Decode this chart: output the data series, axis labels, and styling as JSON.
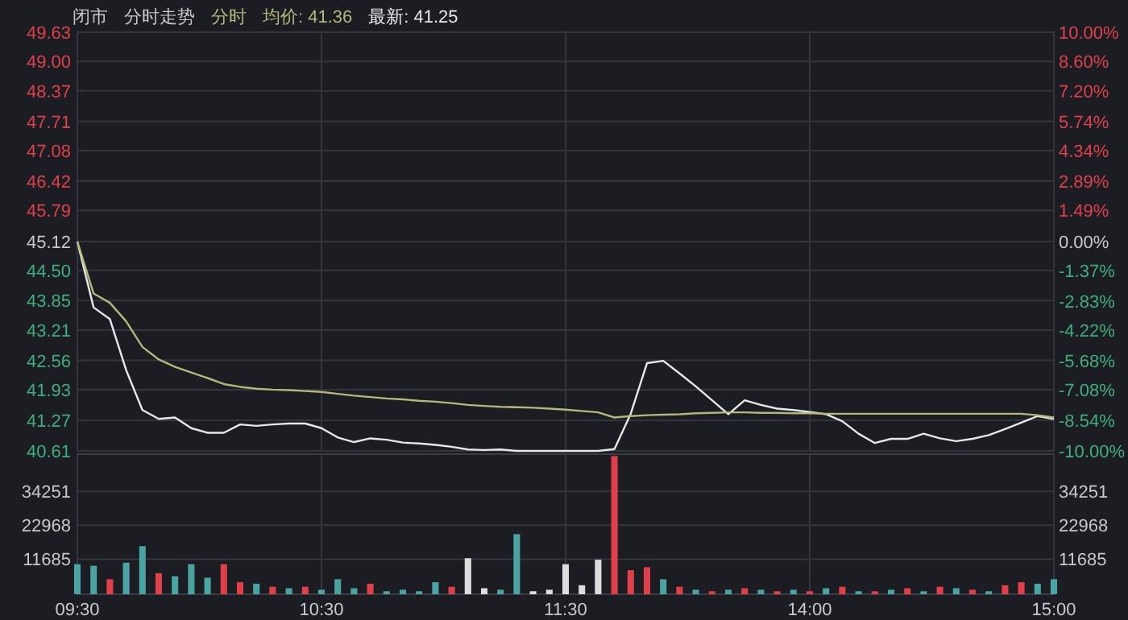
{
  "chart_data": [
    {
      "type": "line",
      "annotations": [
        "闭市",
        "分时走势",
        "分时",
        "均价: 41.36",
        "最新: 41.25"
      ],
      "categories": [
        null,
        null,
        null,
        null,
        null,
        null,
        null,
        null,
        null,
        null,
        null,
        null,
        null,
        null,
        null,
        null,
        null,
        null,
        null,
        null,
        null,
        null,
        null,
        null,
        null,
        null,
        null,
        null,
        null,
        null,
        null,
        null,
        null,
        null,
        null,
        null,
        null,
        null,
        null,
        null,
        null,
        null,
        null,
        null,
        null,
        null,
        null,
        null,
        null,
        null,
        null,
        null,
        null,
        null,
        null,
        null,
        null,
        null,
        null,
        null,
        null
      ],
      "ylim": [
        40.61,
        49.63
      ],
      "yticks": [
        40.61,
        41.27,
        41.93,
        42.56,
        43.21,
        43.85,
        {
          "value": 44.5,
          "label": "44.50"
        },
        45.12,
        45.79,
        46.42,
        47.08,
        47.71,
        48.37,
        {
          "value": 49,
          "label": "49.00"
        },
        49.63
      ],
      "y2lim": [
        -10,
        10
      ],
      "y2ticks": [
        {
          "value": -10,
          "label": "-10.00%"
        },
        {
          "value": -8.54,
          "label": "-8.54%"
        },
        {
          "value": -7.08,
          "label": "-7.08%"
        },
        {
          "value": -5.68,
          "label": "-5.68%"
        },
        {
          "value": -4.22,
          "label": "-4.22%"
        },
        {
          "value": -2.83,
          "label": "-2.83%"
        },
        {
          "value": -1.37,
          "label": "-1.37%"
        },
        {
          "value": 0,
          "label": "0.00%"
        },
        {
          "value": 1.49,
          "label": "1.49%"
        },
        {
          "value": 2.89,
          "label": "2.89%"
        },
        {
          "value": 4.34,
          "label": "4.34%"
        },
        {
          "value": 5.74,
          "label": "5.74%"
        },
        {
          "value": 7.2,
          "label": "7.20%"
        },
        {
          "value": 8.6,
          "label": "8.60%"
        },
        {
          "value": 10,
          "label": "10.00%"
        }
      ],
      "grid": true,
      "tick_labels": "y",
      "series": [
        {
          "color": "#e8e8e8",
          "values": [
            45.12,
            43.7,
            43.45,
            42.35,
            41.49,
            41.3,
            41.33,
            41.1,
            41.0,
            41.0,
            41.18,
            41.15,
            41.18,
            41.2,
            41.2,
            41.1,
            40.9,
            40.8,
            40.88,
            40.85,
            40.79,
            40.77,
            40.74,
            40.7,
            40.64,
            40.63,
            40.64,
            40.61,
            40.61,
            40.61,
            40.61,
            40.61,
            40.61,
            40.65,
            41.41,
            42.5,
            42.55,
            42.28,
            42.0,
            41.7,
            41.4,
            41.7,
            41.6,
            41.52,
            41.49,
            41.45,
            41.4,
            41.25,
            40.98,
            40.78,
            40.87,
            40.87,
            40.98,
            40.88,
            40.82,
            40.87,
            40.95,
            41.08,
            41.22,
            41.36,
            41.3
          ]
        },
        {
          "color": "#b5b77a",
          "values": [
            45.12,
            44.0,
            43.8,
            43.4,
            42.85,
            42.58,
            42.42,
            42.3,
            42.18,
            42.05,
            41.99,
            41.95,
            41.93,
            41.92,
            41.9,
            41.88,
            41.84,
            41.8,
            41.77,
            41.74,
            41.72,
            41.69,
            41.67,
            41.64,
            41.6,
            41.58,
            41.56,
            41.55,
            41.54,
            41.52,
            41.5,
            41.47,
            41.44,
            41.33,
            41.36,
            41.38,
            41.39,
            41.4,
            41.42,
            41.43,
            41.44,
            41.44,
            41.43,
            41.43,
            41.42,
            41.42,
            41.41,
            41.41,
            41.41,
            41.41,
            41.41,
            41.41,
            41.41,
            41.41,
            41.41,
            41.41,
            41.41,
            41.41,
            41.41,
            41.38,
            41.33
          ]
        }
      ]
    },
    {
      "type": "bar",
      "categories": [
        "09:30",
        null,
        null,
        null,
        null,
        null,
        null,
        null,
        null,
        null,
        null,
        null,
        null,
        null,
        null,
        "10:30",
        null,
        null,
        null,
        null,
        null,
        null,
        null,
        null,
        null,
        null,
        null,
        null,
        null,
        null,
        "11:30",
        null,
        null,
        null,
        null,
        null,
        null,
        null,
        null,
        null,
        null,
        null,
        null,
        null,
        null,
        "14:00",
        null,
        null,
        null,
        null,
        null,
        null,
        null,
        null,
        null,
        null,
        null,
        null,
        null,
        null,
        "15:00"
      ],
      "ylim": [
        0,
        46650
      ],
      "yticks": [
        11685,
        22968,
        34251
      ],
      "y2lim": [
        0,
        46650
      ],
      "y2ticks": [
        11685,
        22968,
        34251
      ],
      "grid": true,
      "values": [
        10000,
        9500,
        5000,
        10500,
        16000,
        7000,
        6000,
        10000,
        5500,
        10000,
        4000,
        3500,
        2500,
        2000,
        2500,
        1500,
        5000,
        2000,
        3500,
        1000,
        1500,
        1000,
        4000,
        2500,
        12000,
        2000,
        1500,
        20000,
        1000,
        1500,
        10000,
        3000,
        11500,
        46000,
        8000,
        9000,
        5000,
        2500,
        1500,
        1000,
        1500,
        2000,
        1500,
        1000,
        1500,
        1000,
        2000,
        2500,
        1000,
        1000,
        1500,
        2000,
        1000,
        2500,
        2000,
        1500,
        1000,
        3000,
        4000,
        3500,
        5000
      ],
      "colors": [
        "#4ba3a3",
        "#4ba3a3",
        "#e0404a",
        "#4ba3a3",
        "#4ba3a3",
        "#e0404a",
        "#4ba3a3",
        "#4ba3a3",
        "#4ba3a3",
        "#e0404a",
        "#e0404a",
        "#4ba3a3",
        "#e0404a",
        "#4ba3a3",
        "#e0404a",
        "#4ba3a3",
        "#4ba3a3",
        "#4ba3a3",
        "#e0404a",
        "#4ba3a3",
        "#4ba3a3",
        "#4ba3a3",
        "#4ba3a3",
        "#e0404a",
        "#dddddd",
        "#dddddd",
        "#4ba3a3",
        "#4ba3a3",
        "#dddddd",
        "#dddddd",
        "#dddddd",
        "#dddddd",
        "#dddddd",
        "#e0404a",
        "#e0404a",
        "#e0404a",
        "#4ba3a3",
        "#e0404a",
        "#4ba3a3",
        "#e0404a",
        "#4ba3a3",
        "#e0404a",
        "#4ba3a3",
        "#e0404a",
        "#4ba3a3",
        "#e0404a",
        "#4ba3a3",
        "#e0404a",
        "#4ba3a3",
        "#e0404a",
        "#4ba3a3",
        "#e0404a",
        "#4ba3a3",
        "#e0404a",
        "#4ba3a3",
        "#e0404a",
        "#4ba3a3",
        "#e0404a",
        "#e0404a",
        "#4ba3a3",
        "#4ba3a3"
      ]
    }
  ]
}
